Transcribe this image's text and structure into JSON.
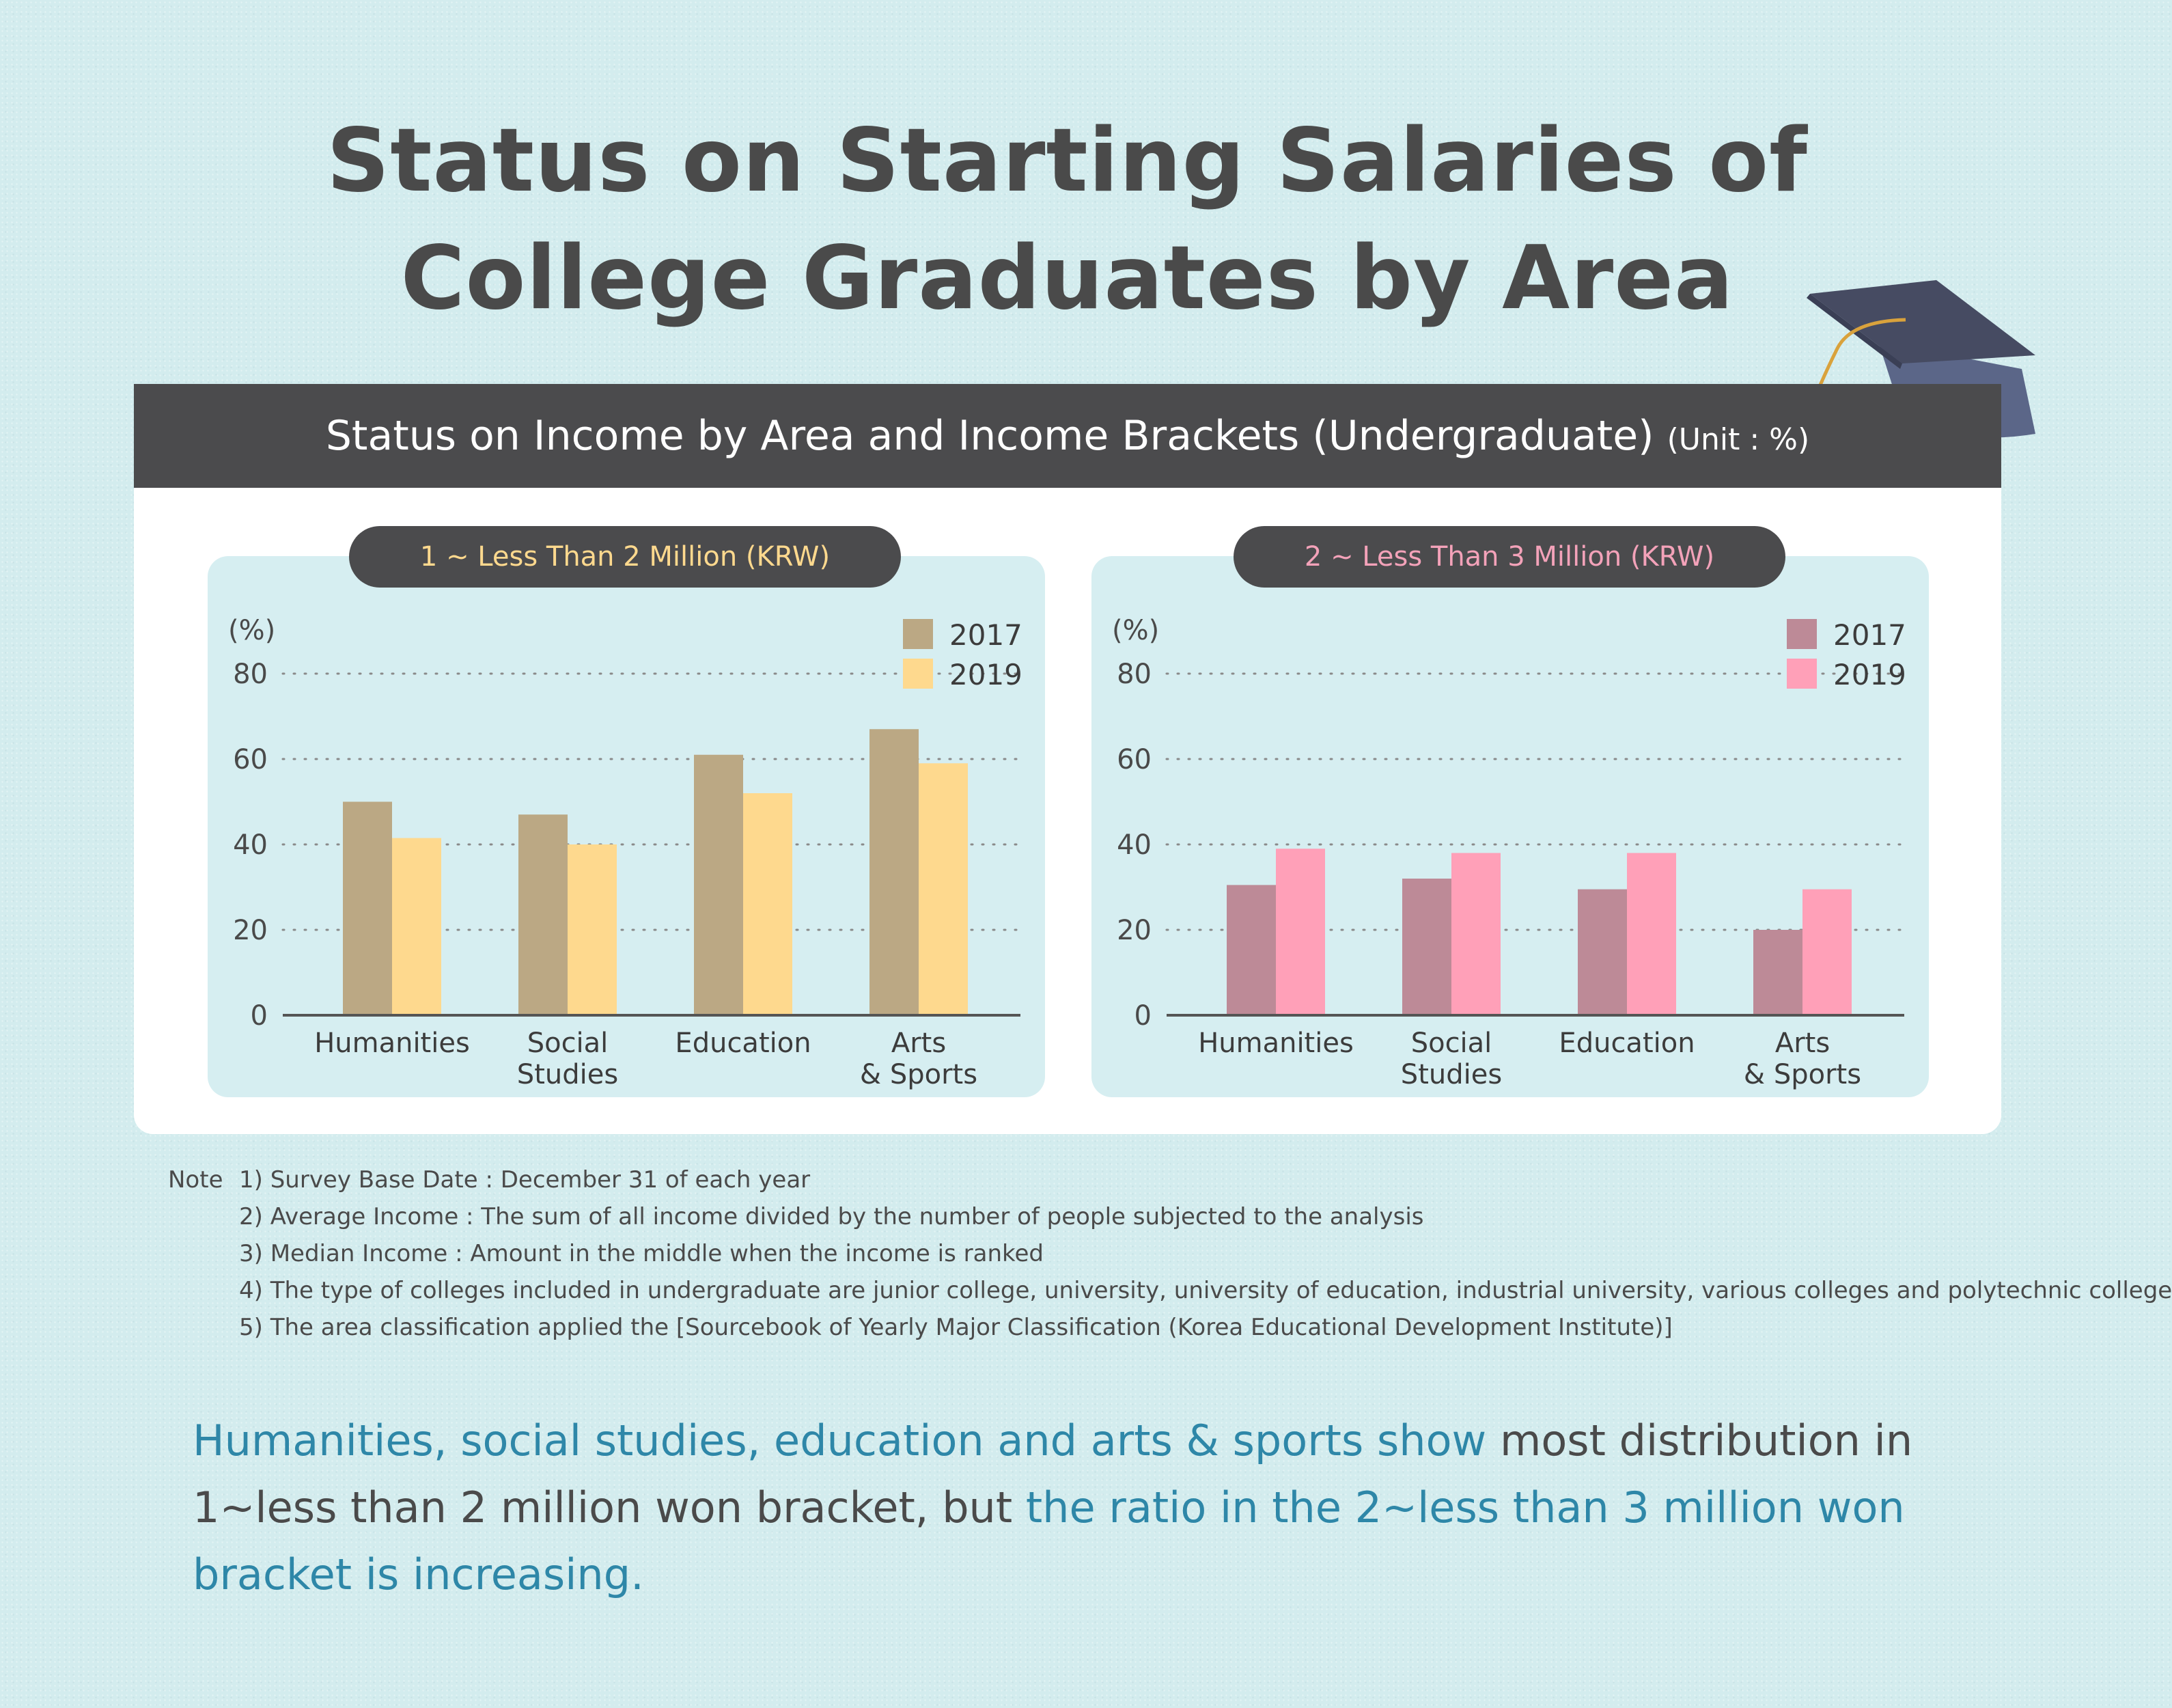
{
  "title_line1": "Status on Starting Salaries of",
  "title_line2": "College Graduates by Area",
  "card": {
    "heading": "Status on Income by Area and Income Brackets (Undergraduate)",
    "unit": "(Unit : %)"
  },
  "colors": {
    "panel1_2017": "#bba884",
    "panel1_2019": "#fed98e",
    "panel2_2017": "#bd8a97",
    "panel2_2019": "#ffa0b8",
    "pill1_text": "#ffd98e",
    "pill2_text": "#f3a2b9",
    "highlight_text": "#2e87a8"
  },
  "chart_data": [
    {
      "type": "bar",
      "title": "1 ~ Less Than 2 Million (KRW)",
      "ylabel": "(%)",
      "ylim": [
        0,
        80
      ],
      "yticks": [
        "0",
        "20",
        "40",
        "60",
        "80"
      ],
      "grid": "dotted horizontal",
      "legend_position": "top-right",
      "categories": [
        [
          "Humanities"
        ],
        [
          "Social",
          "Studies"
        ],
        [
          "Education"
        ],
        [
          "Arts",
          "& Sports"
        ]
      ],
      "series": [
        {
          "name": "2017",
          "values": [
            50,
            47,
            61,
            67
          ]
        },
        {
          "name": "2019",
          "values": [
            41.5,
            40,
            52,
            59
          ]
        }
      ]
    },
    {
      "type": "bar",
      "title": "2 ~ Less Than 3 Million (KRW)",
      "ylabel": "(%)",
      "ylim": [
        0,
        80
      ],
      "yticks": [
        "0",
        "20",
        "40",
        "60",
        "80"
      ],
      "grid": "dotted horizontal",
      "legend_position": "top-right",
      "categories": [
        [
          "Humanities"
        ],
        [
          "Social",
          "Studies"
        ],
        [
          "Education"
        ],
        [
          "Arts",
          "& Sports"
        ]
      ],
      "series": [
        {
          "name": "2017",
          "values": [
            30.5,
            32,
            29.5,
            20
          ]
        },
        {
          "name": "2019",
          "values": [
            39,
            38,
            38,
            29.5
          ]
        }
      ]
    }
  ],
  "notes": {
    "label": "Note",
    "items": [
      "1) Survey Base Date : December 31 of each year",
      "2) Average Income : The sum of all income divided by the number of people subjected to the analysis",
      "3) Median Income : Amount in the middle when the income is ranked",
      "4) The type of colleges included in undergraduate are junior college, university, university of education, industrial university, various colleges and polytechnic college",
      "5) The area classification applied the [Sourcebook of Yearly Major Classification (Korea Educational Development Institute)]"
    ]
  },
  "summary": {
    "part1": "Humanities, social studies, education and arts & sports show",
    "part2": " most distribution in 1~less than 2 million won bracket, but ",
    "part3": "the ratio in the 2~less than 3 million won bracket is increasing."
  }
}
